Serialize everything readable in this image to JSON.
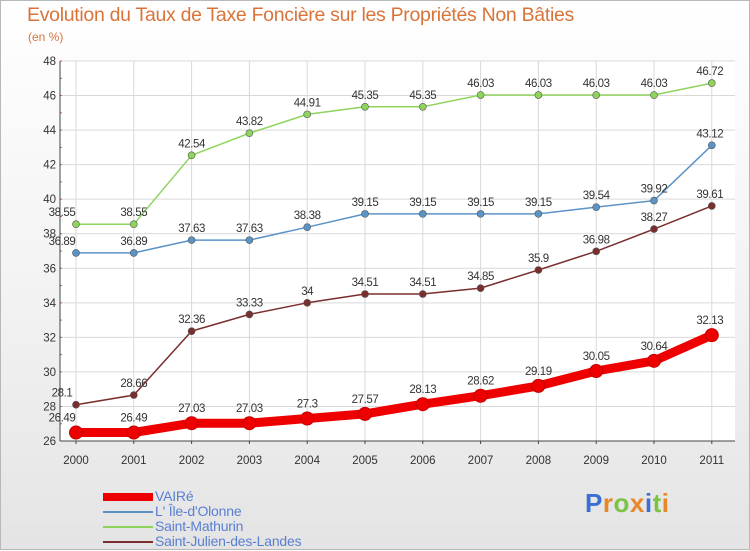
{
  "chart_data": {
    "type": "line",
    "title": "Evolution du Taux de Taxe Foncière sur les Propriétés Non Bâties",
    "unit_label": "(en %)",
    "x": [
      "2000",
      "2001",
      "2002",
      "2003",
      "2004",
      "2005",
      "2006",
      "2007",
      "2008",
      "2009",
      "2010",
      "2011"
    ],
    "ylim": [
      26,
      48
    ],
    "yticks": [
      26,
      28,
      30,
      32,
      34,
      36,
      38,
      40,
      42,
      44,
      46,
      48
    ],
    "grid": true,
    "legend_position": "bottom-left",
    "series": [
      {
        "name": "VAIRé",
        "color": "#ee0000",
        "width": 9,
        "marker_r": 6.5,
        "values": [
          26.49,
          26.49,
          27.03,
          27.03,
          27.3,
          27.57,
          28.13,
          28.62,
          29.19,
          30.05,
          30.64,
          32.13
        ],
        "labels": [
          "26.49",
          "26.49",
          "27.03",
          "27.03",
          "27.3",
          "27.57",
          "28.13",
          "28.62",
          "29.19",
          "30.05",
          "30.64",
          "32.13"
        ]
      },
      {
        "name": "L' Île-d'Olonne",
        "color": "#5b93c7",
        "width": 1.5,
        "marker_r": 3.5,
        "values": [
          36.89,
          36.89,
          37.63,
          37.63,
          38.38,
          39.15,
          39.15,
          39.15,
          39.15,
          39.54,
          39.92,
          43.12
        ],
        "labels": [
          "36.89",
          "36.89",
          "37.63",
          "37.63",
          "38.38",
          "39.15",
          "39.15",
          "39.15",
          "39.15",
          "39.54",
          "39.92",
          "43.12"
        ]
      },
      {
        "name": "Saint-Mathurin",
        "color": "#8ed45c",
        "width": 1.5,
        "marker_r": 3.5,
        "values": [
          38.55,
          38.55,
          42.54,
          43.82,
          44.91,
          45.35,
          45.35,
          46.03,
          46.03,
          46.03,
          46.03,
          46.72
        ],
        "labels": [
          "38.55",
          "38.55",
          "42.54",
          "43.82",
          "44.91",
          "45.35",
          "45.35",
          "46.03",
          "46.03",
          "46.03",
          "46.03",
          "46.72"
        ]
      },
      {
        "name": "Saint-Julien-des-Landes",
        "color": "#7a2e2e",
        "width": 1.5,
        "marker_r": 3.5,
        "values": [
          28.1,
          28.66,
          32.36,
          33.33,
          34,
          34.51,
          34.51,
          34.85,
          35.9,
          36.98,
          38.27,
          39.61
        ],
        "labels": [
          "28.1",
          "28.66",
          "32.36",
          "33.33",
          "34",
          "34.51",
          "34.51",
          "34.85",
          "35.9",
          "36.98",
          "38.27",
          "39.61"
        ]
      }
    ]
  },
  "brand": {
    "letters": [
      "P",
      "r",
      "o",
      "x",
      "i",
      "t",
      "i"
    ],
    "colors": [
      "#3b6fd6",
      "#e8872a",
      "#7cc243",
      "#e8872a",
      "#3b6fd6",
      "#7cc243",
      "#e8872a"
    ]
  }
}
